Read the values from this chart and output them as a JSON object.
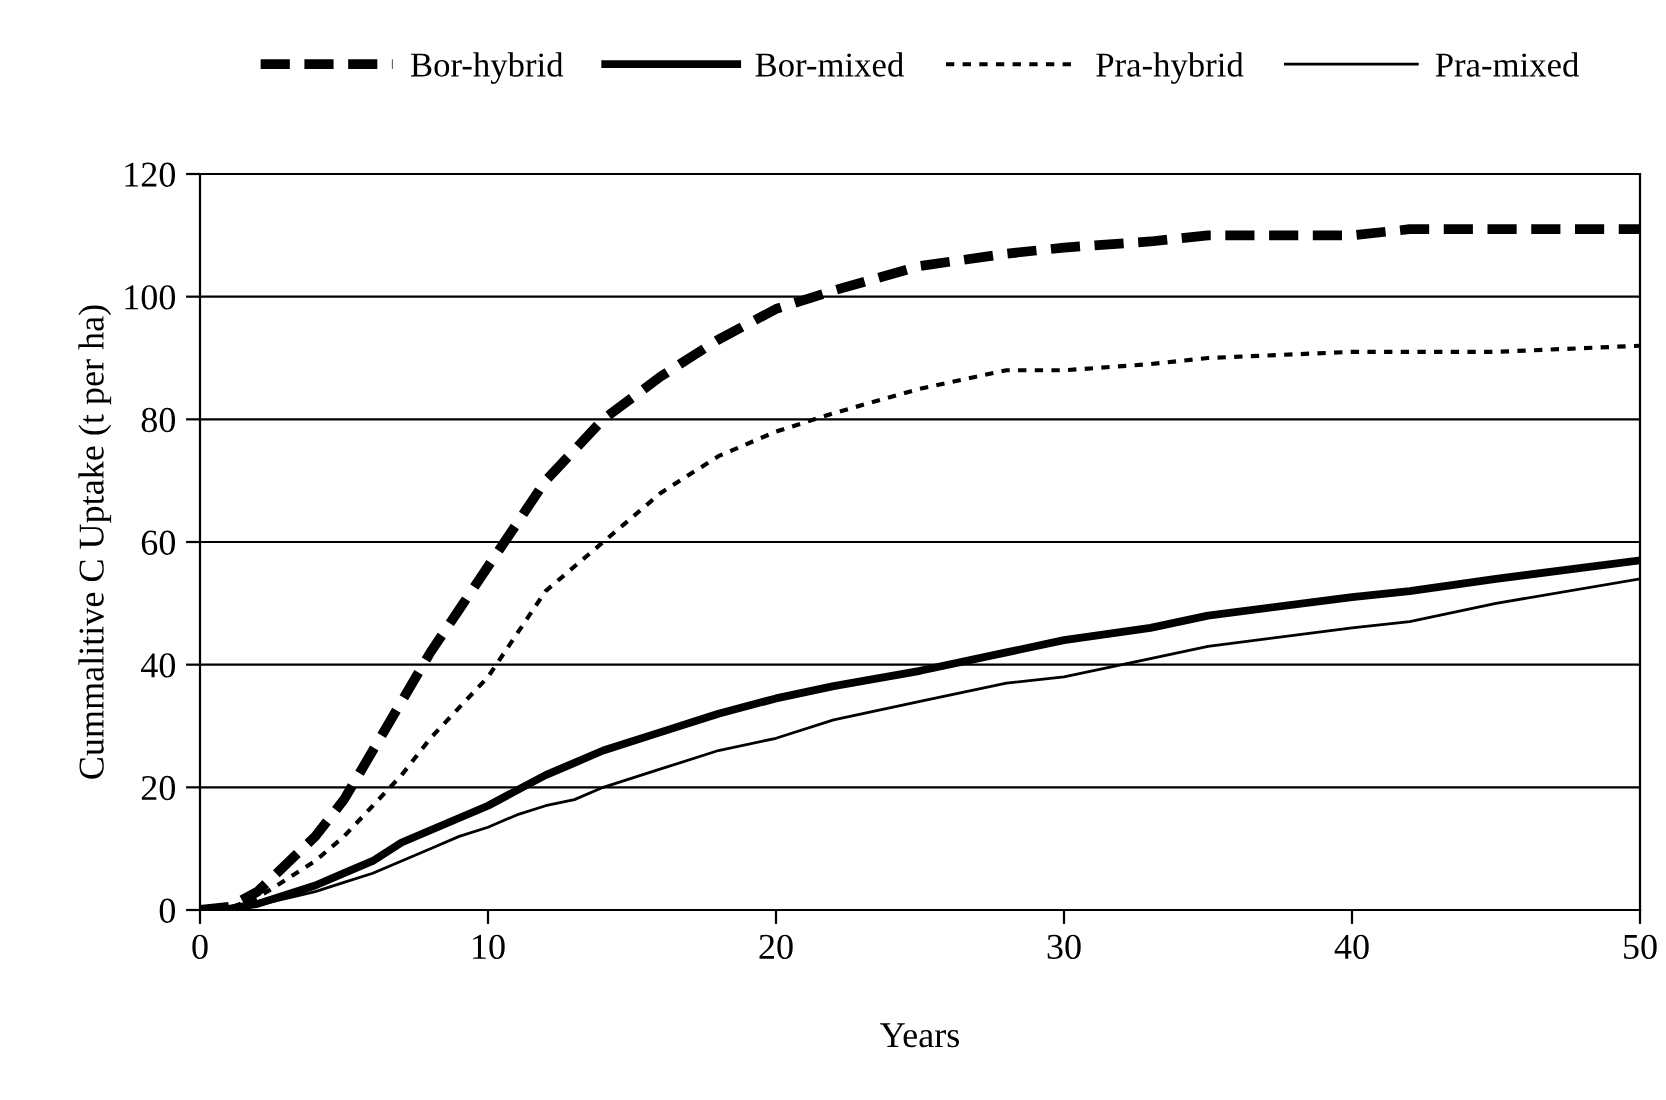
{
  "chart_data": {
    "type": "line",
    "xlabel": "Years",
    "ylabel": "Cummalitive C Uptake (t per ha)",
    "xlim": [
      0,
      50
    ],
    "xticks": [
      0,
      10,
      20,
      30,
      40,
      50
    ],
    "ylim": [
      0,
      120
    ],
    "yticks": [
      0,
      20,
      40,
      60,
      80,
      100,
      120
    ],
    "grid": "y",
    "legend": "top",
    "marker": "none",
    "x": [
      0,
      1,
      2,
      4,
      5,
      6,
      7,
      8,
      9,
      10,
      11,
      12,
      13,
      14,
      16,
      18,
      20,
      22,
      25,
      28,
      30,
      33,
      35,
      40,
      42,
      45,
      50
    ],
    "series": [
      {
        "name": "Bor-hybrid",
        "color": "#000000",
        "line_style": "dashed",
        "values": [
          0,
          0.5,
          3,
          12,
          18,
          26,
          34,
          42,
          49,
          56,
          63,
          70,
          75,
          80,
          87,
          93,
          98,
          101,
          105,
          107,
          108,
          109,
          110,
          110,
          111,
          111,
          111
        ]
      },
      {
        "name": "Bor-mixed",
        "color": "#000000",
        "line_style": "solid",
        "values": [
          0,
          0.2,
          1,
          4,
          6,
          8,
          11,
          13,
          15,
          17,
          19.5,
          22,
          24,
          26,
          29,
          32,
          34.5,
          36.5,
          39,
          42,
          44,
          46,
          48,
          51,
          52,
          54,
          57
        ]
      },
      {
        "name": "Pra-hybrid",
        "color": "#000000",
        "line_style": "dotted",
        "values": [
          0,
          0.3,
          2,
          8,
          12,
          17,
          22,
          28,
          33,
          38,
          45,
          52,
          56,
          60,
          68,
          74,
          78,
          81,
          85,
          88,
          88,
          89,
          90,
          91,
          91,
          91,
          92
        ]
      },
      {
        "name": "Pra-mixed",
        "color": "#000000",
        "line_style": "solid",
        "values": [
          0,
          0.1,
          0.8,
          3,
          4.5,
          6,
          8,
          10,
          12,
          13.5,
          15.5,
          17,
          18,
          20,
          23,
          26,
          28,
          31,
          34,
          37,
          38,
          41,
          43,
          46,
          47,
          50,
          54
        ]
      }
    ]
  }
}
